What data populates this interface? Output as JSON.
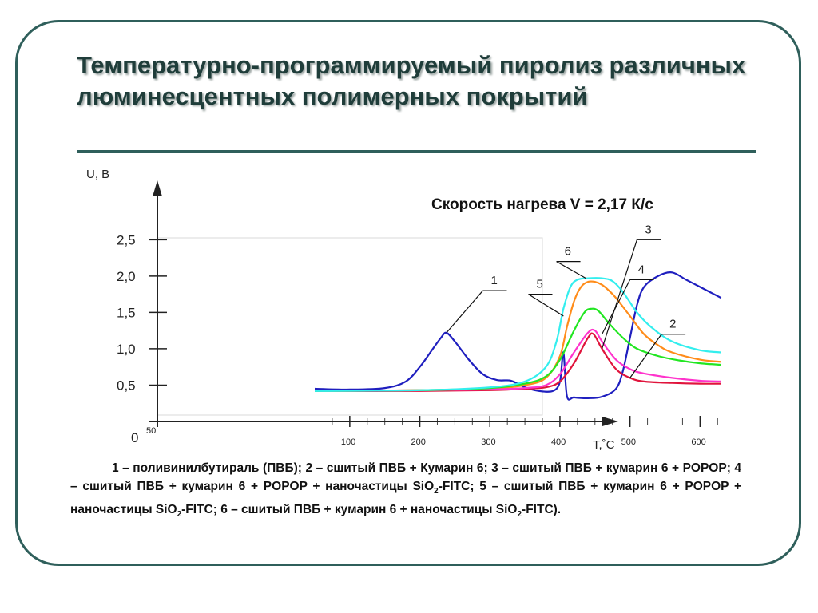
{
  "slide": {
    "title": "Температурно-программируемый пиролиз различных люминесцентных полимерных покрытий"
  },
  "legend": {
    "text_1a": "1 – поливинилбутираль (ПВБ); 2 – сшитый ПВБ + Кумарин 6; 3 – сшитый ПВБ + кумарин 6 + POPOP;  4 – сшитый ПВБ + кумарин 6 + POPOP + наночастицы SiO",
    "sub_1": "2",
    "text_2": "-FITC; 5 – сшитый ПВБ + кумарин 6 + POPOP + наночастицы SiO",
    "sub_2": "2",
    "text_3": "-FITC; 6 – сшитый ПВБ + кумарин 6 + наночастицы SiO",
    "sub_3": "2",
    "text_4": "-FITC)."
  },
  "chart_data": {
    "type": "line",
    "ylabel": "U, В",
    "xlabel": "T,˚C",
    "annotation": "Скорость нагрева V = 2,17 К/с",
    "xlim": [
      50,
      650
    ],
    "ylim": [
      0,
      2.8
    ],
    "x_ticks": [
      "50",
      "100",
      "200",
      "300",
      "400",
      "500",
      "600"
    ],
    "y_ticks": [
      "0",
      "0,5",
      "1,0",
      "1,5",
      "2,0",
      "2,5"
    ],
    "y_tick_values": [
      0,
      0.5,
      1.0,
      1.5,
      2.0,
      2.5
    ],
    "x_tick_values": [
      50,
      100,
      200,
      300,
      400,
      500,
      600
    ],
    "series": [
      {
        "name": "1",
        "color": "#1f1fbf",
        "x": [
          50,
          100,
          150,
          180,
          200,
          215,
          230,
          238,
          250,
          270,
          290,
          310,
          330,
          350,
          370,
          390,
          400,
          405,
          410,
          420,
          440,
          460,
          480,
          490,
          500,
          510,
          520,
          540,
          560,
          580,
          600,
          620,
          630
        ],
        "y": [
          0.45,
          0.44,
          0.46,
          0.55,
          0.75,
          0.95,
          1.15,
          1.22,
          1.1,
          0.85,
          0.65,
          0.57,
          0.56,
          0.47,
          0.42,
          0.42,
          0.55,
          0.95,
          0.35,
          0.33,
          0.32,
          0.34,
          0.45,
          0.7,
          1.15,
          1.6,
          1.85,
          2.0,
          2.05,
          1.95,
          1.85,
          1.75,
          1.7
        ]
      },
      {
        "name": "2",
        "color": "#e0143c",
        "x": [
          50,
          200,
          300,
          350,
          380,
          400,
          420,
          440,
          448,
          460,
          480,
          500,
          520,
          560,
          600,
          630
        ],
        "y": [
          0.42,
          0.42,
          0.43,
          0.45,
          0.47,
          0.55,
          0.8,
          1.15,
          1.2,
          1.0,
          0.72,
          0.6,
          0.55,
          0.53,
          0.52,
          0.52
        ]
      },
      {
        "name": "3",
        "color": "#ff8c1a",
        "x": [
          50,
          200,
          300,
          350,
          380,
          400,
          410,
          420,
          430,
          440,
          450,
          460,
          470,
          480,
          500,
          520,
          540,
          560,
          600,
          630
        ],
        "y": [
          0.42,
          0.43,
          0.45,
          0.5,
          0.6,
          0.9,
          1.3,
          1.65,
          1.85,
          1.92,
          1.92,
          1.88,
          1.8,
          1.7,
          1.45,
          1.2,
          1.05,
          0.95,
          0.85,
          0.82
        ]
      },
      {
        "name": "4",
        "color": "#ff33cc",
        "x": [
          50,
          200,
          300,
          350,
          380,
          400,
          420,
          440,
          450,
          460,
          480,
          500,
          520,
          560,
          600,
          630
        ],
        "y": [
          0.42,
          0.43,
          0.44,
          0.46,
          0.5,
          0.65,
          0.95,
          1.22,
          1.25,
          1.1,
          0.85,
          0.72,
          0.66,
          0.6,
          0.56,
          0.55
        ]
      },
      {
        "name": "5",
        "color": "#22e622",
        "x": [
          50,
          200,
          300,
          350,
          380,
          400,
          420,
          435,
          445,
          455,
          470,
          490,
          510,
          540,
          570,
          600,
          630
        ],
        "y": [
          0.42,
          0.43,
          0.46,
          0.52,
          0.62,
          0.85,
          1.25,
          1.5,
          1.55,
          1.52,
          1.35,
          1.15,
          1.0,
          0.9,
          0.84,
          0.8,
          0.78
        ]
      },
      {
        "name": "6",
        "color": "#33eeee",
        "x": [
          50,
          200,
          300,
          350,
          380,
          395,
          405,
          415,
          425,
          440,
          460,
          475,
          490,
          510,
          530,
          560,
          600,
          630
        ],
        "y": [
          0.42,
          0.43,
          0.47,
          0.55,
          0.75,
          1.1,
          1.55,
          1.85,
          1.95,
          1.97,
          1.97,
          1.93,
          1.78,
          1.5,
          1.3,
          1.1,
          0.98,
          0.95
        ]
      }
    ],
    "curve_labels": [
      {
        "text": "1",
        "ref_x": 238,
        "ref_y": 1.22,
        "at_x": 290,
        "at_y": 1.8
      },
      {
        "text": "2",
        "ref_x": 500,
        "ref_y": 0.6,
        "at_x": 545,
        "at_y": 1.2
      },
      {
        "text": "3",
        "ref_x": 460,
        "ref_y": 1.0,
        "at_x": 510,
        "at_y": 2.5
      },
      {
        "text": "4",
        "ref_x": 460,
        "ref_y": 1.2,
        "at_x": 500,
        "at_y": 1.95
      },
      {
        "text": "5",
        "ref_x": 405,
        "ref_y": 1.45,
        "at_x": 355,
        "at_y": 1.75
      },
      {
        "text": "6",
        "ref_x": 437,
        "ref_y": 1.97,
        "at_x": 395,
        "at_y": 2.2
      }
    ]
  }
}
